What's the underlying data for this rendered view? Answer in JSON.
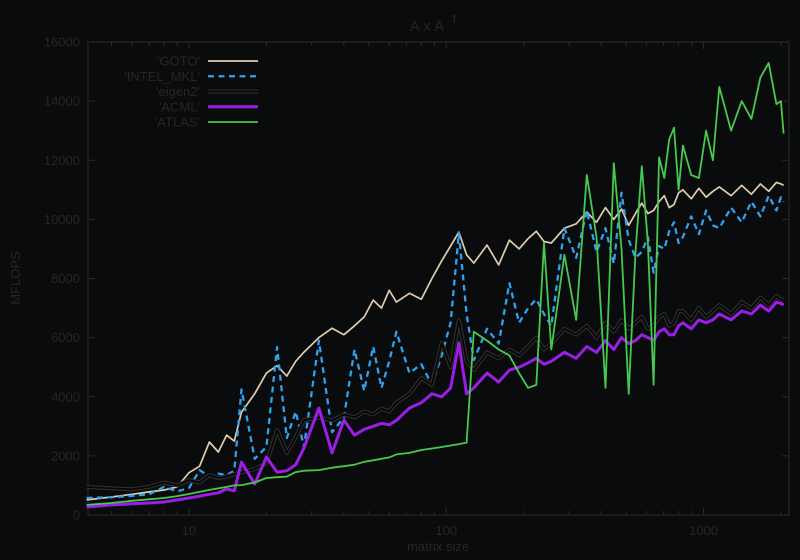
{
  "title": {
    "main": "A x A",
    "superscript": "T"
  },
  "x_axis": {
    "label": "matrix size",
    "scale": "log",
    "major_ticks": [
      {
        "value": 10,
        "label": "10"
      },
      {
        "value": 100,
        "label": "100"
      },
      {
        "value": 1000,
        "label": "1000"
      }
    ],
    "minor_ticks": [
      5,
      6,
      7,
      8,
      9,
      20,
      30,
      40,
      50,
      60,
      70,
      80,
      90,
      200,
      300,
      400,
      500,
      600,
      700,
      800,
      900,
      2000
    ]
  },
  "y_axis": {
    "label": "MFLOPS",
    "ticks": [
      {
        "value": 0,
        "label": "0"
      },
      {
        "value": 2000,
        "label": "2000"
      },
      {
        "value": 4000,
        "label": "4000"
      },
      {
        "value": 6000,
        "label": "6000"
      },
      {
        "value": 8000,
        "label": "8000"
      },
      {
        "value": 10000,
        "label": "10000"
      },
      {
        "value": 12000,
        "label": "12000"
      },
      {
        "value": 14000,
        "label": "14000"
      },
      {
        "value": 16000,
        "label": "16000"
      }
    ]
  },
  "colors": {
    "background": "#0a0b0c",
    "text": "#262626",
    "axis": "#2b2b2b"
  },
  "chart_data": {
    "type": "line",
    "title": "A x A^T",
    "xlabel": "matrix size",
    "ylabel": "MFLOPS",
    "xscale": "log",
    "xlim": [
      4.05,
      2150
    ],
    "ylim": [
      0,
      16000
    ],
    "grid": false,
    "legend_position": "top-left",
    "x": [
      4,
      5,
      6,
      7,
      8,
      9,
      10,
      11,
      12,
      13,
      14,
      15,
      16,
      18,
      20,
      22,
      24,
      26,
      28,
      32,
      36,
      40,
      44,
      48,
      52,
      56,
      60,
      64,
      72,
      80,
      88,
      96,
      104,
      112,
      120,
      128,
      144,
      160,
      176,
      192,
      208,
      224,
      240,
      256,
      288,
      320,
      352,
      384,
      416,
      448,
      480,
      512,
      544,
      576,
      608,
      640,
      672,
      704,
      736,
      768,
      800,
      832,
      896,
      960,
      1024,
      1088,
      1152,
      1280,
      1408,
      1536,
      1664,
      1792,
      1920,
      2000,
      2048
    ],
    "series": [
      {
        "key": "goto",
        "name": "'GOTO'",
        "color": "#e0ccae",
        "width": 1.7,
        "dash": "",
        "halo": "",
        "values": [
          510,
          610,
          700,
          780,
          845,
          950,
          1430,
          1650,
          2470,
          2130,
          2700,
          2500,
          3480,
          4100,
          4800,
          5050,
          4700,
          5200,
          5510,
          6000,
          6320,
          6100,
          6400,
          6700,
          7270,
          7000,
          7600,
          7200,
          7500,
          7300,
          8000,
          8600,
          9100,
          9570,
          8800,
          8520,
          9130,
          8460,
          9300,
          9000,
          9350,
          9600,
          9250,
          9200,
          9700,
          9850,
          10250,
          9900,
          10400,
          10000,
          10350,
          9800,
          10200,
          10550,
          10200,
          10300,
          10600,
          10800,
          10400,
          10500,
          10900,
          11000,
          10700,
          11050,
          10750,
          10950,
          11100,
          10800,
          11150,
          10850,
          11200,
          10950,
          11250,
          11200,
          11150
        ]
      },
      {
        "key": "intel_mkl",
        "name": "'INTEL_MKL'",
        "color": "#2fa1ee",
        "width": 2.3,
        "dash": "6,4.5",
        "halo": "",
        "values": [
          575,
          600,
          650,
          700,
          950,
          800,
          910,
          1520,
          1300,
          1400,
          1350,
          1500,
          4250,
          1900,
          2300,
          5680,
          2600,
          3500,
          2300,
          5900,
          2800,
          3300,
          5600,
          4200,
          5700,
          4300,
          5200,
          6200,
          4800,
          5100,
          4400,
          5400,
          6500,
          9540,
          6800,
          5240,
          6300,
          5800,
          7840,
          6500,
          7000,
          7300,
          6800,
          6400,
          9700,
          8700,
          10300,
          8900,
          9700,
          8500,
          10900,
          9300,
          8700,
          8900,
          9400,
          8200,
          9100,
          9000,
          9600,
          9900,
          9200,
          9400,
          10100,
          9500,
          10300,
          9800,
          9700,
          10400,
          9900,
          10600,
          10100,
          10800,
          10300,
          10750,
          10600
        ]
      },
      {
        "key": "eigen2",
        "name": "'eigen2'",
        "color": "#050505",
        "width": 1.8,
        "dash": "",
        "halo": "#303030",
        "values": [
          950,
          900,
          870,
          950,
          1100,
          1000,
          1180,
          1100,
          1350,
          1250,
          1300,
          1380,
          1450,
          1550,
          1750,
          2880,
          2100,
          2640,
          3210,
          3300,
          3200,
          3400,
          3300,
          3500,
          3400,
          3600,
          3500,
          3800,
          4100,
          4630,
          4400,
          5820,
          5000,
          6600,
          5200,
          4900,
          5500,
          5300,
          5600,
          5400,
          5700,
          6000,
          5600,
          5800,
          6300,
          6100,
          6400,
          6000,
          6500,
          6200,
          6600,
          6300,
          6500,
          6700,
          6300,
          6400,
          6700,
          6800,
          6400,
          6500,
          6900,
          6900,
          6600,
          7000,
          6700,
          6900,
          7100,
          6800,
          7200,
          7000,
          7350,
          7100,
          7400,
          7300,
          7250
        ]
      },
      {
        "key": "acml",
        "name": "'ACML'",
        "color": "#9a1ee6",
        "width": 3,
        "dash": "",
        "halo": "",
        "values": [
          270,
          340,
          380,
          405,
          440,
          510,
          575,
          640,
          700,
          750,
          880,
          820,
          1790,
          1050,
          1960,
          1450,
          1500,
          1700,
          2270,
          3620,
          2100,
          3210,
          2700,
          2900,
          3000,
          3100,
          3050,
          3200,
          3620,
          3800,
          4100,
          4000,
          4300,
          5820,
          4100,
          4300,
          4800,
          4500,
          4900,
          5000,
          5150,
          5300,
          5100,
          5200,
          5500,
          5300,
          5700,
          5500,
          5900,
          5600,
          6000,
          5800,
          5900,
          6100,
          6000,
          5900,
          6200,
          6300,
          6100,
          6100,
          6400,
          6500,
          6300,
          6600,
          6500,
          6600,
          6800,
          6600,
          6900,
          6800,
          7100,
          6900,
          7200,
          7150,
          7100
        ]
      },
      {
        "key": "atlas",
        "name": "'ATLAS'",
        "color": "#47c94f",
        "width": 1.8,
        "dash": "",
        "halo": "",
        "values": [
          340,
          405,
          480,
          530,
          575,
          640,
          710,
          780,
          850,
          900,
          950,
          1000,
          1010,
          1100,
          1250,
          1280,
          1300,
          1450,
          1500,
          1520,
          1600,
          1650,
          1700,
          1800,
          1850,
          1900,
          1950,
          2050,
          2100,
          2200,
          2250,
          2300,
          2350,
          2400,
          2450,
          6200,
          5900,
          5600,
          5400,
          4800,
          4300,
          4400,
          9200,
          5600,
          8800,
          6600,
          11500,
          9400,
          4300,
          11900,
          9000,
          4100,
          8900,
          11800,
          9200,
          4400,
          12100,
          11400,
          12700,
          13100,
          11000,
          12500,
          11500,
          11400,
          13000,
          12000,
          14480,
          13000,
          14000,
          13400,
          14800,
          15290,
          13900,
          14000,
          12900
        ]
      }
    ]
  }
}
